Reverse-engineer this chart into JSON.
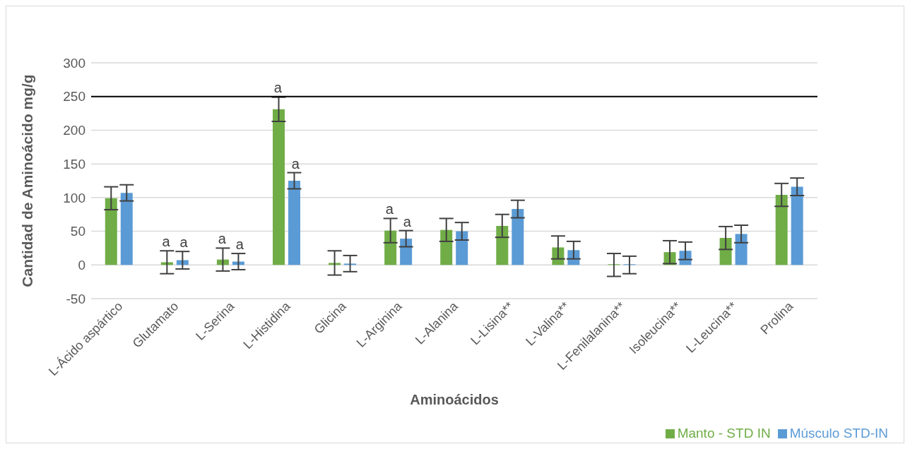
{
  "chart_data": {
    "type": "bar",
    "xlabel": "Aminoácidos",
    "ylabel": "Cantidad de Aminoácido mg/g",
    "categories": [
      "L-Ácido aspártico",
      "Glutamato",
      "L-Serina",
      "L-Histidina",
      "Glicina",
      "L-Arginina",
      "L-Alanina",
      "L-Lisina**",
      "L-Valina**",
      "L-Fenilalanina**",
      "Isoleucina**",
      "L-Leucina**",
      "Prolina"
    ],
    "series": [
      {
        "name": "Manto - STD IN",
        "color": "#70ad47",
        "values": [
          99,
          4,
          8,
          231,
          3,
          51,
          52,
          58,
          26,
          0,
          19,
          40,
          104
        ],
        "errors": [
          17,
          17,
          17,
          18,
          18,
          18,
          17,
          17,
          17,
          17,
          17,
          17,
          17
        ]
      },
      {
        "name": "Músculo STD-IN",
        "color": "#5b9bd5",
        "values": [
          107,
          7,
          5,
          125,
          2,
          39,
          50,
          83,
          22,
          0,
          21,
          46,
          116
        ],
        "errors": [
          12,
          13,
          12,
          12,
          12,
          12,
          13,
          13,
          13,
          13,
          13,
          13,
          13
        ]
      }
    ],
    "ylim": [
      -50,
      300
    ],
    "yticks": [
      -50,
      0,
      50,
      100,
      150,
      200,
      250,
      300
    ],
    "grid": "y",
    "legend": "bottom right",
    "ref_lines": [
      {
        "axis": "y",
        "value": 250,
        "color": "#000000"
      }
    ],
    "annotations": [
      {
        "text": "a",
        "x": "Glutamato",
        "y": 4
      },
      {
        "text": "a",
        "x": "Glutamato",
        "y": 7
      },
      {
        "text": "a",
        "x": "L-Serina",
        "y": 8
      },
      {
        "text": "a",
        "x": "L-Serina",
        "y": 5
      },
      {
        "text": "a",
        "x": "L-Histidina",
        "y": 250
      },
      {
        "text": "a",
        "x": "L-Histidina",
        "y": 125
      },
      {
        "text": "a",
        "x": "L-Arginina",
        "y": 51
      },
      {
        "text": "a",
        "x": "L-Arginina",
        "y": 39
      }
    ]
  }
}
